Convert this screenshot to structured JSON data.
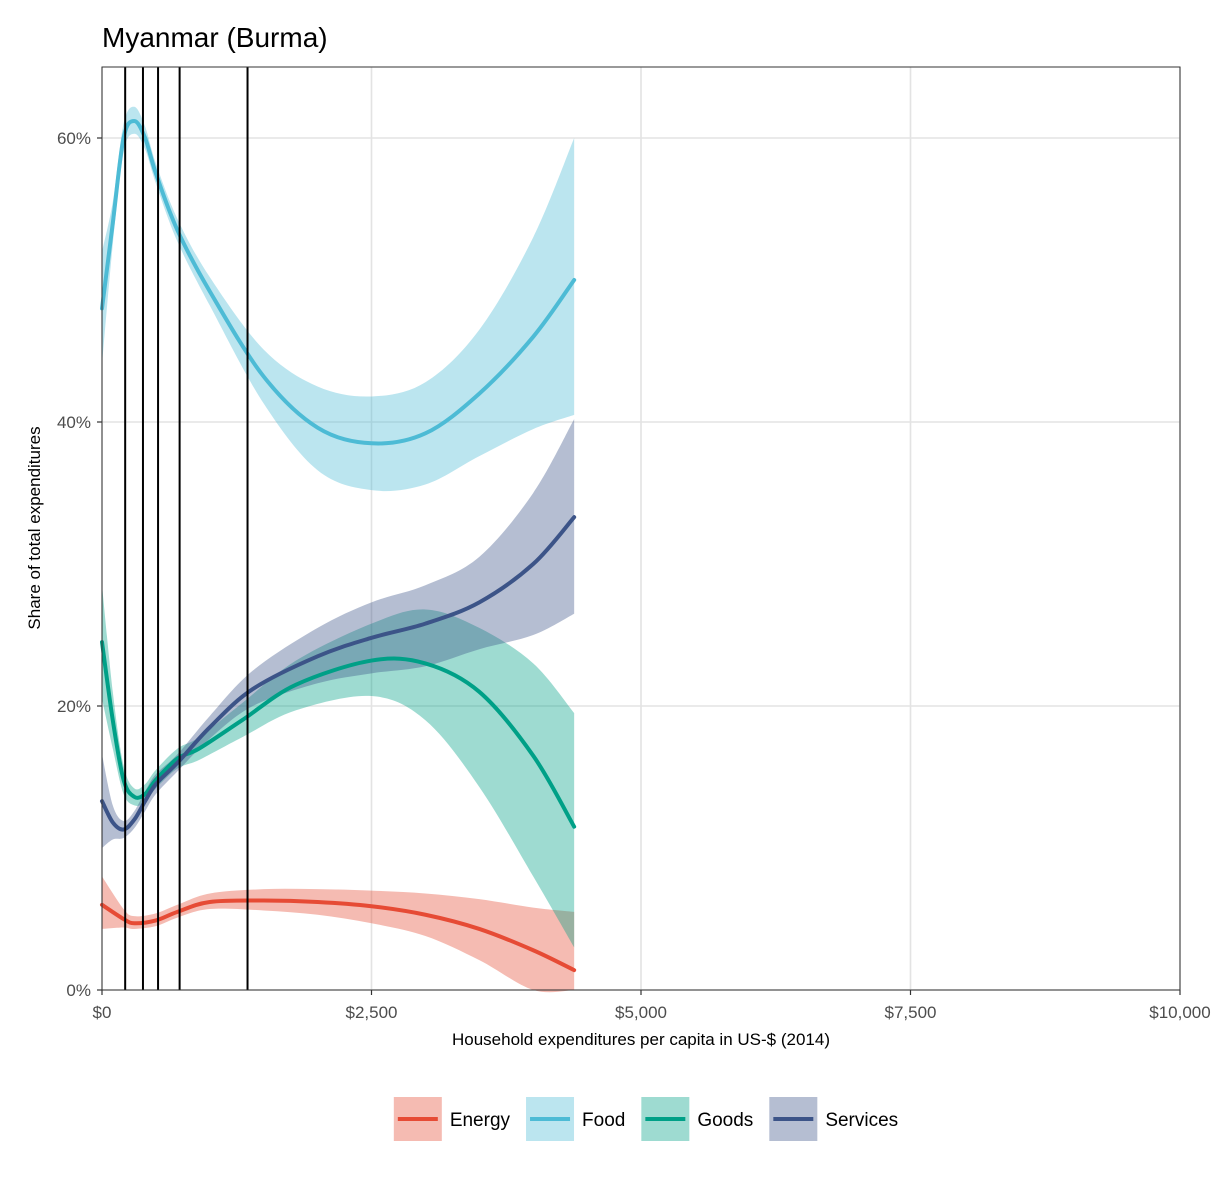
{
  "chart_data": {
    "type": "line",
    "title": "Myanmar (Burma)",
    "xlabel": "Household expenditures per capita in US-$ (2014)",
    "ylabel": "Share of total expenditures",
    "xlim": [
      0,
      10000
    ],
    "ylim": [
      0,
      0.65
    ],
    "x_ticks": [
      0,
      2500,
      5000,
      7500,
      10000
    ],
    "x_tick_labels": [
      "$0",
      "$2,500",
      "$5,000",
      "$7,500",
      "$10,000"
    ],
    "y_ticks": [
      0,
      0.2,
      0.4,
      0.6
    ],
    "y_tick_labels": [
      "0%",
      "20%",
      "40%",
      "60%"
    ],
    "grid": true,
    "legend_position": "bottom",
    "vertical_lines": [
      215,
      380,
      520,
      720,
      1350
    ],
    "series": [
      {
        "name": "Energy",
        "color": "#E64B35",
        "x": [
          0,
          200,
          300,
          500,
          700,
          1000,
          1500,
          2000,
          2500,
          3000,
          3500,
          4000,
          4380
        ],
        "y": [
          0.06,
          0.05,
          0.047,
          0.049,
          0.055,
          0.062,
          0.063,
          0.062,
          0.059,
          0.053,
          0.043,
          0.028,
          0.014
        ],
        "lower": [
          0.043,
          0.044,
          0.043,
          0.045,
          0.051,
          0.057,
          0.056,
          0.053,
          0.047,
          0.038,
          0.021,
          0.0,
          0.0
        ],
        "upper": [
          0.08,
          0.057,
          0.052,
          0.054,
          0.06,
          0.068,
          0.071,
          0.071,
          0.07,
          0.068,
          0.064,
          0.058,
          0.055
        ]
      },
      {
        "name": "Food",
        "color": "#4DBBD5",
        "x": [
          0,
          100,
          200,
          300,
          400,
          500,
          700,
          1000,
          1500,
          2000,
          2500,
          3000,
          3500,
          4000,
          4380
        ],
        "y": [
          0.48,
          0.54,
          0.6,
          0.612,
          0.6,
          0.575,
          0.535,
          0.492,
          0.432,
          0.396,
          0.385,
          0.392,
          0.42,
          0.46,
          0.5
        ],
        "lower": [
          0.44,
          0.525,
          0.59,
          0.603,
          0.592,
          0.568,
          0.527,
          0.482,
          0.413,
          0.366,
          0.352,
          0.356,
          0.376,
          0.395,
          0.405
        ],
        "upper": [
          0.52,
          0.555,
          0.61,
          0.622,
          0.608,
          0.582,
          0.543,
          0.502,
          0.451,
          0.425,
          0.418,
          0.428,
          0.465,
          0.53,
          0.6
        ]
      },
      {
        "name": "Goods",
        "color": "#00A087",
        "x": [
          0,
          100,
          200,
          300,
          400,
          500,
          700,
          900,
          1300,
          1800,
          2500,
          3000,
          3500,
          4000,
          4380
        ],
        "y": [
          0.245,
          0.19,
          0.148,
          0.136,
          0.138,
          0.148,
          0.163,
          0.17,
          0.19,
          0.215,
          0.232,
          0.23,
          0.21,
          0.165,
          0.115
        ],
        "lower": [
          0.205,
          0.17,
          0.138,
          0.13,
          0.132,
          0.142,
          0.156,
          0.162,
          0.178,
          0.197,
          0.207,
          0.19,
          0.143,
          0.08,
          0.03
        ],
        "upper": [
          0.285,
          0.21,
          0.158,
          0.142,
          0.145,
          0.155,
          0.17,
          0.178,
          0.202,
          0.232,
          0.258,
          0.268,
          0.255,
          0.23,
          0.195
        ]
      },
      {
        "name": "Services",
        "color": "#3C5488",
        "x": [
          0,
          100,
          200,
          300,
          400,
          500,
          700,
          1000,
          1400,
          2000,
          2500,
          3000,
          3500,
          4000,
          4380
        ],
        "y": [
          0.133,
          0.118,
          0.113,
          0.12,
          0.133,
          0.145,
          0.16,
          0.185,
          0.212,
          0.235,
          0.248,
          0.258,
          0.273,
          0.3,
          0.333
        ],
        "lower": [
          0.1,
          0.106,
          0.107,
          0.114,
          0.126,
          0.138,
          0.154,
          0.177,
          0.2,
          0.216,
          0.223,
          0.228,
          0.24,
          0.25,
          0.265
        ],
        "upper": [
          0.166,
          0.13,
          0.119,
          0.126,
          0.14,
          0.152,
          0.166,
          0.193,
          0.225,
          0.255,
          0.273,
          0.285,
          0.305,
          0.35,
          0.402
        ]
      }
    ]
  }
}
